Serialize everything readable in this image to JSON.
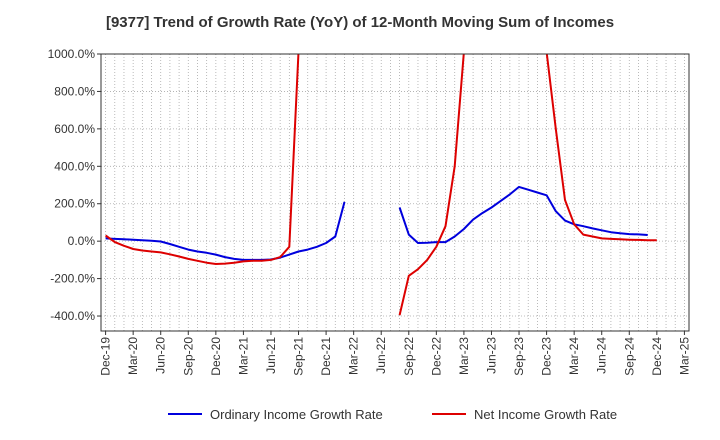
{
  "chart_data": {
    "type": "line",
    "title": "[9377]  Trend of Growth Rate (YoY) of 12-Month Moving Sum of Incomes",
    "xlabel": "",
    "ylabel": "",
    "ylim": [
      -480,
      1000
    ],
    "yticks": [
      1000,
      800,
      600,
      400,
      200,
      0,
      -200,
      -400
    ],
    "ytick_labels": [
      "1000.0%",
      "800.0%",
      "600.0%",
      "400.0%",
      "200.0%",
      "0.0%",
      "-200.0%",
      "-400.0%"
    ],
    "x": [
      "Dec-19",
      "Jan-20",
      "Feb-20",
      "Mar-20",
      "Apr-20",
      "May-20",
      "Jun-20",
      "Jul-20",
      "Aug-20",
      "Sep-20",
      "Oct-20",
      "Nov-20",
      "Dec-20",
      "Jan-21",
      "Feb-21",
      "Mar-21",
      "Apr-21",
      "May-21",
      "Jun-21",
      "Jul-21",
      "Aug-21",
      "Sep-21",
      "Oct-21",
      "Nov-21",
      "Dec-21",
      "Jan-22",
      "Feb-22",
      "Mar-22",
      "Apr-22",
      "May-22",
      "Jun-22",
      "Jul-22",
      "Aug-22",
      "Sep-22",
      "Oct-22",
      "Nov-22",
      "Dec-22",
      "Jan-23",
      "Feb-23",
      "Mar-23",
      "Apr-23",
      "May-23",
      "Jun-23",
      "Jul-23",
      "Aug-23",
      "Sep-23",
      "Oct-23",
      "Nov-23",
      "Dec-23",
      "Jan-24",
      "Feb-24",
      "Mar-24",
      "Apr-24",
      "May-24",
      "Jun-24",
      "Jul-24",
      "Aug-24",
      "Sep-24",
      "Oct-24",
      "Nov-24",
      "Dec-24",
      "Jan-25",
      "Feb-25",
      "Mar-25"
    ],
    "xtick_labels": [
      "Dec-19",
      "Mar-20",
      "Jun-20",
      "Sep-20",
      "Dec-20",
      "Mar-21",
      "Jun-21",
      "Sep-21",
      "Dec-21",
      "Mar-22",
      "Jun-22",
      "Sep-22",
      "Dec-22",
      "Mar-23",
      "Jun-23",
      "Sep-23",
      "Dec-23",
      "Mar-24",
      "Jun-24",
      "Sep-24",
      "Dec-24",
      "Mar-25"
    ],
    "grid": true,
    "legend_position": "bottom",
    "series": [
      {
        "name": "Ordinary Income Growth Rate",
        "color": "#0000dd",
        "values": [
          15,
          12,
          10,
          8,
          5,
          2,
          -2,
          -15,
          -30,
          -45,
          -55,
          -62,
          -72,
          -85,
          -95,
          -100,
          -100,
          -100,
          -98,
          -88,
          -72,
          -55,
          -45,
          -30,
          -10,
          25,
          210,
          null,
          null,
          null,
          null,
          null,
          180,
          35,
          -10,
          -8,
          -5,
          -5,
          25,
          65,
          115,
          150,
          180,
          215,
          250,
          290,
          275,
          260,
          245,
          160,
          110,
          90,
          80,
          68,
          58,
          48,
          42,
          38,
          36,
          33,
          null,
          null,
          null,
          null
        ]
      },
      {
        "name": "Net Income Growth Rate",
        "color": "#dd0000",
        "values": [
          30,
          -5,
          -25,
          -42,
          -50,
          -55,
          -60,
          -70,
          -82,
          -95,
          -105,
          -115,
          -122,
          -120,
          -115,
          -108,
          -105,
          -105,
          -100,
          -85,
          -30,
          2200,
          null,
          null,
          null,
          null,
          null,
          null,
          null,
          null,
          null,
          null,
          -395,
          -185,
          -150,
          -100,
          -30,
          80,
          400,
          2000,
          null,
          null,
          null,
          null,
          null,
          null,
          null,
          null,
          2000,
          600,
          220,
          90,
          35,
          25,
          15,
          12,
          10,
          8,
          7,
          5,
          5,
          null,
          null,
          null
        ]
      }
    ]
  }
}
